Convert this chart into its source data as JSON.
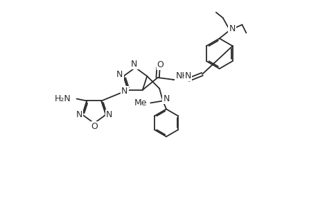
{
  "background_color": "#ffffff",
  "line_color": "#2a2a2a",
  "line_width": 1.3,
  "font_size": 9,
  "figsize": [
    4.6,
    3.0
  ],
  "dpi": 100,
  "xlim": [
    0,
    46
  ],
  "ylim": [
    0,
    30
  ]
}
